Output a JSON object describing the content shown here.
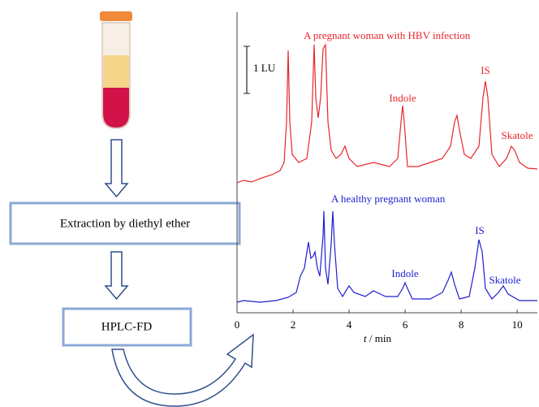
{
  "flow": {
    "steps": [
      "Extraction by diethyl ether",
      "HPLC-FD"
    ]
  },
  "chromatogram": {
    "scale_bar": "1 LU",
    "traces": [
      {
        "name": "A pregnant woman with HBV infection",
        "color": "#e8262b",
        "peaks": [
          "Indole",
          "IS",
          "Skatole"
        ]
      },
      {
        "name": "A healthy pregnant woman",
        "color": "#1f1fd0",
        "peaks": [
          "Indole",
          "IS",
          "Skatole"
        ]
      }
    ],
    "x_axis": {
      "label_var": "t",
      "label_unit": " / min",
      "xlim": [
        0,
        10.72
      ],
      "xticks": [
        0,
        2,
        4,
        6,
        8,
        10
      ]
    }
  }
}
